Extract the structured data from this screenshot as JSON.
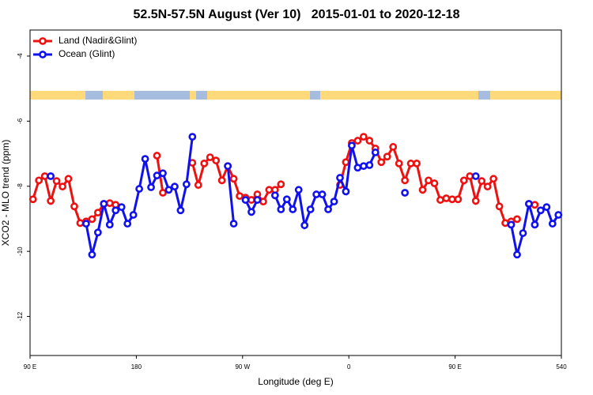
{
  "chart_data": {
    "type": "line",
    "title": "52.5N-57.5N August (Ver 10)   2015-01-01 to 2020-12-18",
    "x_label": "Longitude (deg E)",
    "y_label": "XCO2 - MLO trend (ppm)",
    "x": [
      92.5,
      97.5,
      102.5,
      107.5,
      112.5,
      117.5,
      122.5,
      127.5,
      132.5,
      137.5,
      142.5,
      147.5,
      152.5,
      157.5,
      162.5,
      167.5,
      172.5,
      177.5,
      182.5,
      187.5,
      192.5,
      197.5,
      202.5,
      207.5,
      212.5,
      217.5,
      222.5,
      227.5,
      232.5,
      237.5,
      242.5,
      247.5,
      252.5,
      257.5,
      262.5,
      267.5,
      272.5,
      277.5,
      282.5,
      287.5,
      292.5,
      297.5,
      302.5,
      307.5,
      312.5,
      317.5,
      322.5,
      327.5,
      332.5,
      337.5,
      342.5,
      347.5,
      352.5,
      357.5,
      362.5,
      367.5,
      372.5,
      377.5,
      382.5,
      387.5,
      392.5,
      397.5,
      402.5,
      407.5,
      412.5,
      417.5,
      422.5,
      427.5,
      432.5,
      437.5,
      442.5,
      447.5,
      452.5,
      457.5,
      462.5,
      467.5,
      472.5,
      477.5,
      482.5,
      487.5,
      492.5,
      497.5,
      502.5,
      507.5,
      512.5,
      517.5,
      522.5,
      527.5,
      532.5,
      537.5
    ],
    "series": [
      {
        "name": "Land (Nadir&Glint)",
        "color": "#ee1111",
        "values": [
          -8.4,
          -7.82,
          -7.69,
          -8.45,
          -7.84,
          -8.01,
          -7.77,
          -8.62,
          -9.13,
          -9.08,
          -9.01,
          -8.81,
          -8.54,
          -8.52,
          -8.57,
          null,
          null,
          null,
          null,
          null,
          null,
          -7.06,
          -8.2,
          null,
          null,
          null,
          null,
          -7.28,
          -7.96,
          -7.3,
          -7.11,
          -7.21,
          -7.82,
          -7.38,
          -7.77,
          -8.3,
          -8.35,
          -8.42,
          -8.25,
          -8.47,
          -8.11,
          -8.11,
          -7.94,
          null,
          null,
          null,
          null,
          null,
          null,
          null,
          null,
          null,
          -7.96,
          -7.26,
          -6.67,
          -6.6,
          -6.48,
          -6.6,
          -6.84,
          -7.26,
          -7.09,
          -6.79,
          -7.3,
          -7.82,
          -7.3,
          -7.3,
          -8.11,
          -7.82,
          -7.91,
          -8.42,
          -8.37,
          -8.4,
          -8.4,
          -7.82,
          -7.69,
          -8.45,
          -7.84,
          -8.01,
          -7.77,
          -8.62,
          -9.13,
          -9.08,
          -9.01,
          null,
          -8.54,
          -8.57,
          null,
          null,
          null,
          null
        ]
      },
      {
        "name": "Ocean (Glint)",
        "color": "#1111ee",
        "values": [
          null,
          null,
          null,
          -7.69,
          null,
          null,
          null,
          null,
          null,
          -9.15,
          -10.1,
          -9.42,
          -8.54,
          -9.18,
          -8.74,
          -8.64,
          -9.15,
          -8.88,
          -8.08,
          -7.16,
          -8.03,
          -7.67,
          -7.6,
          -8.11,
          -8.01,
          -8.74,
          -7.94,
          -6.48,
          null,
          null,
          null,
          null,
          null,
          -7.38,
          -9.15,
          null,
          -8.42,
          -8.79,
          -8.42,
          null,
          null,
          -8.28,
          -8.71,
          -8.4,
          -8.71,
          -8.11,
          -9.2,
          -8.71,
          -8.25,
          -8.25,
          -8.71,
          -8.47,
          -7.74,
          -8.16,
          -6.75,
          -7.43,
          -7.38,
          -7.35,
          -6.96,
          null,
          null,
          null,
          null,
          -8.2,
          null,
          null,
          null,
          null,
          null,
          null,
          null,
          null,
          null,
          null,
          null,
          -7.69,
          null,
          null,
          null,
          null,
          null,
          -9.18,
          -10.1,
          -9.44,
          -8.54,
          -9.18,
          -8.74,
          -8.64,
          -9.15,
          -8.88
        ]
      }
    ],
    "xlim": [
      90,
      540
    ],
    "xticks": [
      {
        "value": 90,
        "label": "90 E"
      },
      180,
      {
        "value": 270,
        "label": "90 W"
      },
      {
        "value": 360,
        "label": "0"
      },
      {
        "value": 450,
        "label": "90 E"
      },
      540
    ],
    "ylim": [
      -13.2,
      -3.2
    ],
    "yticks": [
      -4,
      -6,
      -8,
      -10,
      -12
    ],
    "legend": "top-left"
  }
}
